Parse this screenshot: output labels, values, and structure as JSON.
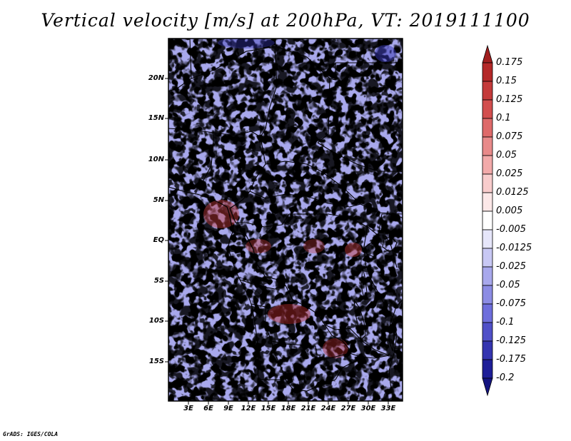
{
  "title": "Vertical velocity [m/s] at 200hPa, VT: 2019111100",
  "map": {
    "variable": "Vertical velocity",
    "units": "m/s",
    "level": "200hPa",
    "valid_time": "2019111100",
    "lat_labels": [
      "20N",
      "15N",
      "10N",
      "5N",
      "EQ",
      "5S",
      "10S",
      "15S"
    ],
    "lon_labels": [
      "3E",
      "6E",
      "9E",
      "12E",
      "15E",
      "18E",
      "21E",
      "24E",
      "27E",
      "30E",
      "33E"
    ]
  },
  "colorbar": {
    "labels": [
      "0.175",
      "0.15",
      "0.125",
      "0.1",
      "0.075",
      "0.05",
      "0.025",
      "0.0125",
      "0.005",
      "-0.005",
      "-0.0125",
      "-0.025",
      "-0.05",
      "-0.075",
      "-0.1",
      "-0.125",
      "-0.175",
      "-0.2"
    ],
    "colors": [
      "#a01e1e",
      "#b42828",
      "#c43a3a",
      "#d24e4e",
      "#de6a6a",
      "#e88a8a",
      "#f2aaaa",
      "#f8cccc",
      "#fce8e8",
      "#ffffff",
      "#e6e6fa",
      "#c8c8f4",
      "#a8a8ec",
      "#8c8ce4",
      "#6e6edc",
      "#5050c8",
      "#3434b0",
      "#1e1e98",
      "#141480"
    ]
  },
  "credit": "GrADS: IGES/COLA"
}
